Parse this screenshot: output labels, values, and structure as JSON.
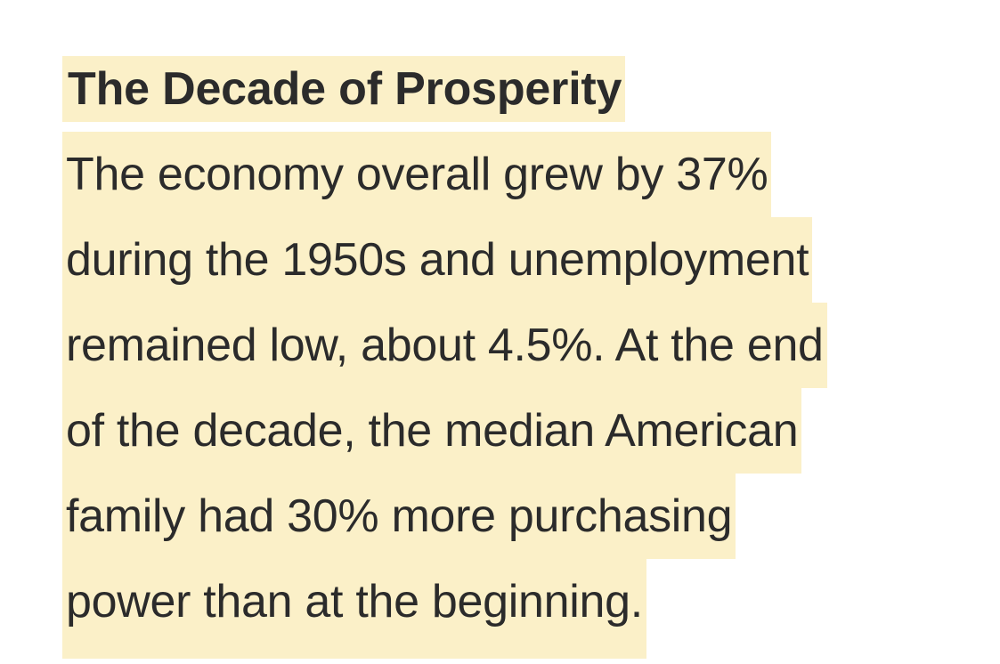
{
  "heading": "The Decade of Prosperity",
  "paragraph_lines": [
    "The economy overall grew by 37%",
    "during the 1950s and unemployment",
    "remained low, about 4.5%. At the end",
    "of the decade, the median American",
    "family had 30% more purchasing",
    "power than at the beginning."
  ],
  "highlight_color": "#fbf0c8"
}
